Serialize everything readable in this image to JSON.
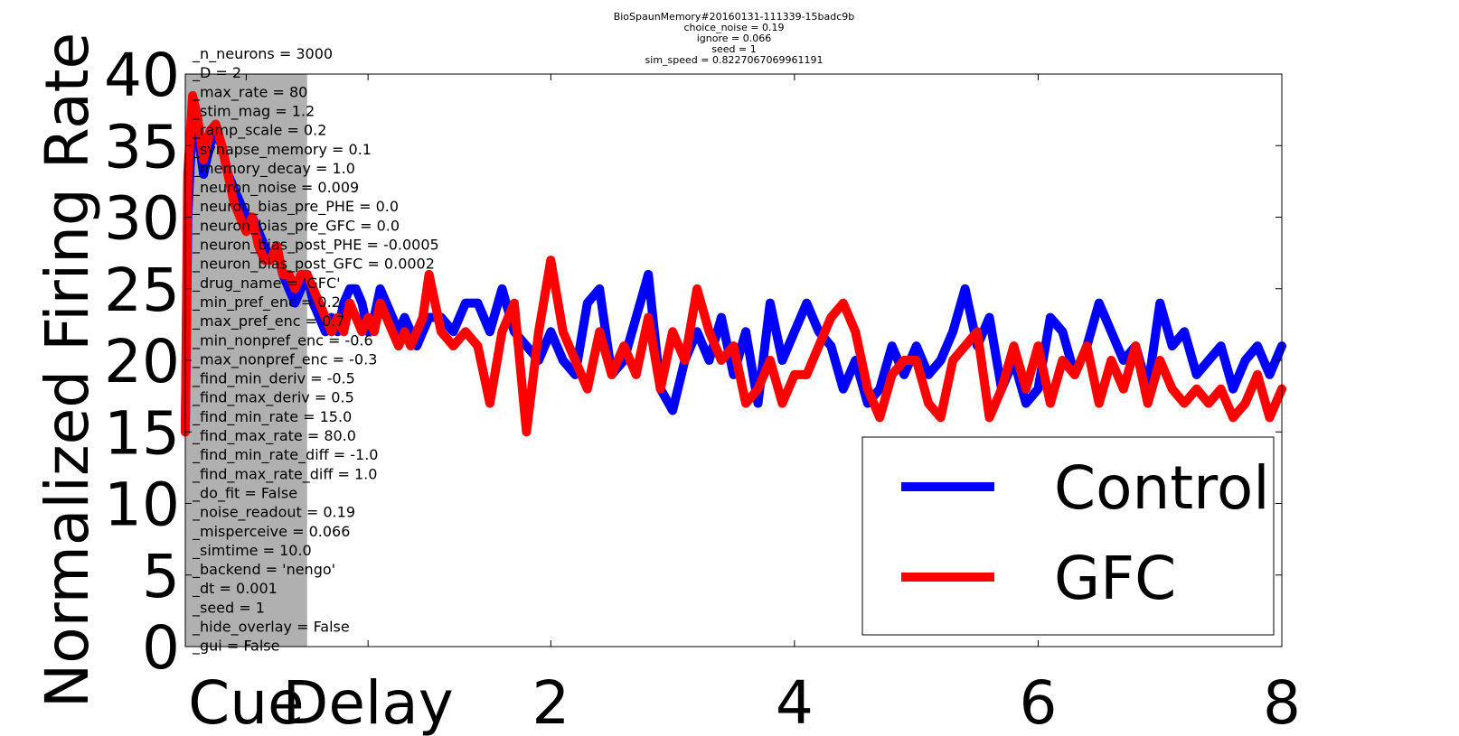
{
  "chart_data": {
    "type": "line",
    "title_lines": [
      "BioSpaunMemory#20160131-111339-15badc9b",
      "choice_noise = 0.19",
      "ignore = 0.066",
      "seed = 1",
      "sim_speed = 0.8227067069961191"
    ],
    "ylabel": "Normalized Firing Rate",
    "xlabel": "",
    "xlim": [
      0,
      9
    ],
    "ylim": [
      0,
      40
    ],
    "x_ticks": [
      {
        "value": 0.5,
        "label": "Cue"
      },
      {
        "value": 1.5,
        "label": "Delay"
      },
      {
        "value": 3,
        "label": "2"
      },
      {
        "value": 5,
        "label": "4"
      },
      {
        "value": 7,
        "label": "6"
      },
      {
        "value": 9,
        "label": "8"
      }
    ],
    "y_ticks": [
      0,
      5,
      10,
      15,
      20,
      25,
      30,
      35,
      40
    ],
    "shaded_region": {
      "x": [
        0,
        1
      ],
      "color": "#b0b0b0"
    },
    "legend": {
      "placement": "bottom-right"
    },
    "params": [
      "_n_neurons = 3000",
      "_D = 2",
      "_max_rate = 80",
      "_stim_mag = 1.2",
      "_ramp_scale = 0.2",
      "_synapse_memory = 0.1",
      "_memory_decay = 1.0",
      "_neuron_noise = 0.009",
      "_neuron_bias_pre_PHE = 0.0",
      "_neuron_bias_pre_GFC = 0.0",
      "_neuron_bias_post_PHE = -0.0005",
      "_neuron_bias_post_GFC = 0.0002",
      "_drug_name = 'GFC'",
      "_min_pref_enc = 0.2",
      "_max_pref_enc = 0.7",
      "_min_nonpref_enc = -0.6",
      "_max_nonpref_enc = -0.3",
      "_find_min_deriv = -0.5",
      "_find_max_deriv = 0.5",
      "_find_min_rate = 15.0",
      "_find_max_rate = 80.0",
      "_find_min_rate_diff = -1.0",
      "_find_max_rate_diff = 1.0",
      "_do_fit = False",
      "_noise_readout = 0.19",
      "_misperceive = 0.066",
      "_simtime = 10.0",
      "_backend = 'nengo'",
      "_dt = 0.001",
      "_seed = 1",
      "_hide_overlay = False",
      "_gui = False"
    ],
    "series": [
      {
        "name": "Control",
        "color": "#0000ff",
        "x": [
          0.0,
          0.02,
          0.06,
          0.1,
          0.15,
          0.2,
          0.25,
          0.3,
          0.35,
          0.4,
          0.45,
          0.5,
          0.55,
          0.6,
          0.65,
          0.7,
          0.75,
          0.8,
          0.85,
          0.9,
          0.95,
          1.0,
          1.05,
          1.1,
          1.15,
          1.2,
          1.25,
          1.3,
          1.35,
          1.4,
          1.45,
          1.5,
          1.55,
          1.6,
          1.65,
          1.7,
          1.75,
          1.8,
          1.85,
          1.9,
          1.95,
          2.0,
          2.1,
          2.2,
          2.3,
          2.4,
          2.5,
          2.6,
          2.7,
          2.8,
          2.9,
          3.0,
          3.1,
          3.2,
          3.3,
          3.4,
          3.5,
          3.6,
          3.7,
          3.8,
          3.9,
          4.0,
          4.1,
          4.2,
          4.3,
          4.4,
          4.5,
          4.6,
          4.7,
          4.8,
          4.9,
          5.0,
          5.1,
          5.2,
          5.3,
          5.4,
          5.5,
          5.6,
          5.7,
          5.8,
          5.9,
          6.0,
          6.1,
          6.2,
          6.3,
          6.4,
          6.5,
          6.6,
          6.7,
          6.8,
          6.9,
          7.0,
          7.1,
          7.2,
          7.3,
          7.4,
          7.5,
          7.6,
          7.7,
          7.8,
          7.9,
          8.0,
          8.1,
          8.2,
          8.3,
          8.4,
          8.5,
          8.6,
          8.7,
          8.8,
          8.9,
          9.0
        ],
        "y": [
          15,
          30,
          37,
          36,
          33,
          35,
          36,
          35,
          33,
          32,
          31,
          30,
          30,
          29,
          28,
          27,
          28,
          26,
          25,
          24,
          25,
          26,
          24,
          23,
          22,
          23,
          22,
          24,
          25,
          25,
          24,
          22,
          23,
          25,
          24,
          23,
          22,
          23,
          22,
          21,
          22,
          23,
          23,
          22,
          24,
          24,
          22,
          25,
          22,
          21,
          20,
          22,
          20,
          19,
          24,
          25,
          19,
          20,
          23,
          26,
          18,
          16.5,
          20,
          22,
          20,
          23,
          19,
          22,
          17,
          24,
          20,
          22,
          24,
          22,
          21,
          18,
          20,
          17,
          18,
          21,
          19,
          21,
          19,
          20,
          22,
          25,
          21,
          23,
          18,
          20,
          17,
          18,
          23,
          22,
          19,
          21,
          24,
          22,
          20,
          21,
          18,
          24,
          21,
          22,
          19,
          20,
          21,
          18,
          20,
          21,
          19,
          21
        ]
      },
      {
        "name": "GFC",
        "color": "#ff0000",
        "x": [
          0.0,
          0.02,
          0.06,
          0.1,
          0.15,
          0.2,
          0.25,
          0.3,
          0.35,
          0.4,
          0.45,
          0.5,
          0.55,
          0.6,
          0.65,
          0.7,
          0.75,
          0.8,
          0.85,
          0.9,
          0.95,
          1.0,
          1.05,
          1.1,
          1.15,
          1.2,
          1.25,
          1.3,
          1.35,
          1.4,
          1.45,
          1.5,
          1.55,
          1.6,
          1.65,
          1.7,
          1.75,
          1.8,
          1.85,
          1.9,
          1.95,
          2.0,
          2.1,
          2.2,
          2.3,
          2.4,
          2.5,
          2.6,
          2.7,
          2.8,
          2.9,
          3.0,
          3.1,
          3.2,
          3.3,
          3.4,
          3.5,
          3.6,
          3.7,
          3.8,
          3.9,
          4.0,
          4.1,
          4.2,
          4.3,
          4.4,
          4.5,
          4.6,
          4.7,
          4.8,
          4.9,
          5.0,
          5.1,
          5.2,
          5.3,
          5.4,
          5.5,
          5.6,
          5.7,
          5.8,
          5.9,
          6.0,
          6.1,
          6.2,
          6.3,
          6.4,
          6.5,
          6.6,
          6.7,
          6.8,
          6.9,
          7.0,
          7.1,
          7.2,
          7.3,
          7.4,
          7.5,
          7.6,
          7.7,
          7.8,
          7.9,
          8.0,
          8.1,
          8.2,
          8.3,
          8.4,
          8.5,
          8.6,
          8.7,
          8.8,
          8.9,
          9.0
        ],
        "y": [
          15,
          33,
          38.5,
          37,
          34,
          36,
          36.5,
          35,
          33,
          31,
          30,
          29,
          30,
          28,
          27,
          27,
          28,
          26,
          26,
          25,
          26,
          26,
          25,
          24,
          23,
          22,
          23,
          22,
          24,
          23,
          22,
          23,
          22,
          24,
          23,
          22,
          21,
          22,
          21,
          22,
          23,
          26,
          22,
          21,
          22,
          21,
          17,
          22,
          24,
          15,
          22,
          27,
          22,
          20,
          18,
          22,
          19,
          21,
          19,
          23,
          18,
          22,
          20,
          25,
          22,
          20,
          21,
          17,
          18,
          20,
          17,
          19,
          19,
          21,
          23,
          24,
          22,
          18,
          16,
          19,
          20,
          20,
          17,
          16,
          20,
          21,
          22,
          16,
          18,
          21,
          18,
          21,
          17,
          20,
          19,
          21,
          17,
          20,
          18,
          21,
          17,
          20,
          18,
          17,
          18,
          17,
          18,
          16,
          17,
          19,
          16,
          18
        ]
      }
    ]
  }
}
